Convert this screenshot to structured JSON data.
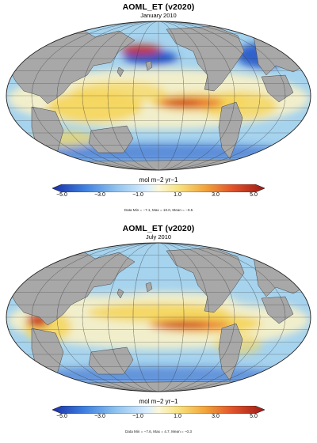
{
  "maps": [
    {
      "title": "AOML_ET (v2020)",
      "subtitle": "January 2010",
      "colorbar": {
        "unit_label": "mol m−2 yr−1",
        "ticks": [
          "−5.0",
          "−3.0",
          "−1.0",
          "1.0",
          "3.0",
          "5.0"
        ],
        "range": [
          -5,
          5
        ]
      },
      "stats_text": "Data Min = −7.1, Max = 10.0, Mean = −0.5",
      "visible_features": [
        "strong positive flux band in central/eastern equatorial Pacific",
        "negative flux in North Pacific near Japan",
        "negative flux in North Atlantic and Southern Ocean"
      ]
    },
    {
      "title": "AOML_ET (v2020)",
      "subtitle": "July 2010",
      "colorbar": {
        "unit_label": "mol m−2 yr−1",
        "ticks": [
          "−5.0",
          "−3.0",
          "−1.0",
          "1.0",
          "3.0",
          "5.0"
        ],
        "range": [
          -5,
          5
        ]
      },
      "stats_text": "Data Min = −7.6, Max = 4.7, Mean = −0.3",
      "visible_features": [
        "strong positive flux band across equatorial Pacific",
        "positive flux in Arabian Sea",
        "negative flux in Southern Ocean"
      ]
    }
  ],
  "colors": {
    "land": "#a8a8a8",
    "neutral": "#f6f0c9",
    "positive_low": "#f5d55a",
    "positive_high": "#c42d1e",
    "negative_low": "#a6d3ee",
    "negative_high": "#2255c8"
  }
}
